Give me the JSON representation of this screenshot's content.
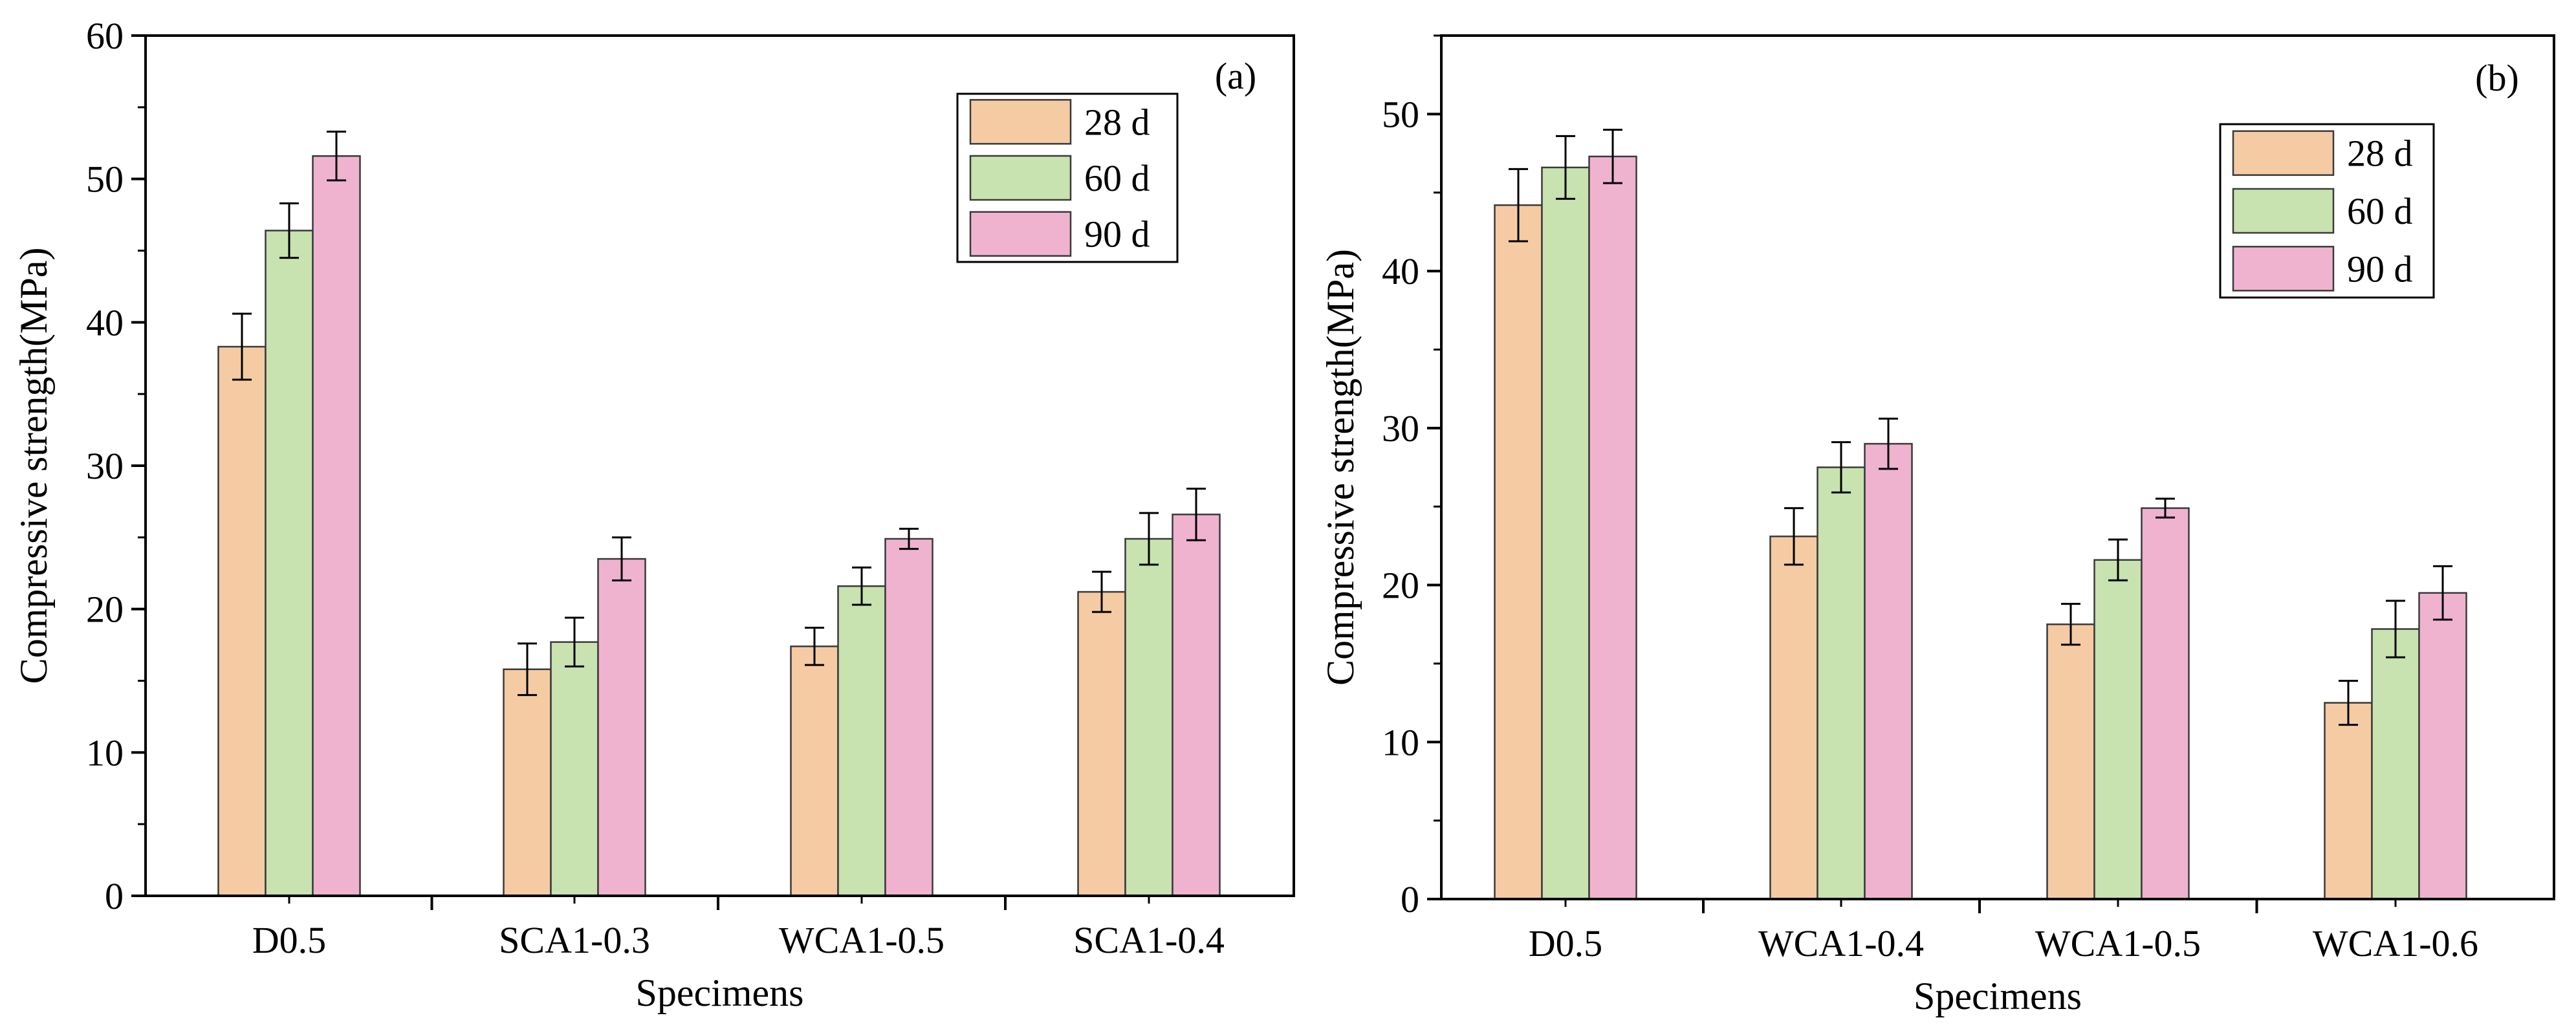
{
  "chart_data": [
    {
      "type": "bar",
      "panel_label": "(a)",
      "xlabel": "Specimens",
      "ylabel": "Compressive strength(MPa)",
      "ylim": [
        0,
        60
      ],
      "yticks": [
        0,
        10,
        20,
        30,
        40,
        50,
        60
      ],
      "categories": [
        "D0.5",
        "SCA1-0.3",
        "WCA1-0.5",
        "SCA1-0.4"
      ],
      "legend_position": "top-right",
      "series": [
        {
          "name": "28 d",
          "color": "#f5cba3",
          "values": [
            38.3,
            15.8,
            17.4,
            21.2
          ],
          "errors": [
            2.3,
            1.8,
            1.3,
            1.4
          ]
        },
        {
          "name": "60 d",
          "color": "#c8e2b0",
          "values": [
            46.4,
            17.7,
            21.6,
            24.9
          ],
          "errors": [
            1.9,
            1.7,
            1.3,
            1.8
          ]
        },
        {
          "name": "90 d",
          "color": "#f0b3cf",
          "values": [
            51.6,
            23.5,
            24.9,
            26.6
          ],
          "errors": [
            1.7,
            1.5,
            0.7,
            1.8
          ]
        }
      ]
    },
    {
      "type": "bar",
      "panel_label": "(b)",
      "xlabel": "Specimens",
      "ylabel": "Compressive strength(MPa)",
      "ylim": [
        0,
        55
      ],
      "yticks": [
        0,
        10,
        20,
        30,
        40,
        50
      ],
      "categories": [
        "D0.5",
        "WCA1-0.4",
        "WCA1-0.5",
        "WCA1-0.6"
      ],
      "legend_position": "top-right",
      "series": [
        {
          "name": "28 d",
          "color": "#f5cba3",
          "values": [
            44.2,
            23.1,
            17.5,
            12.5
          ],
          "errors": [
            2.3,
            1.8,
            1.3,
            1.4
          ]
        },
        {
          "name": "60 d",
          "color": "#c8e2b0",
          "values": [
            46.6,
            27.5,
            21.6,
            17.2
          ],
          "errors": [
            2.0,
            1.6,
            1.3,
            1.8
          ]
        },
        {
          "name": "90 d",
          "color": "#f0b3cf",
          "values": [
            47.3,
            29.0,
            24.9,
            19.5
          ],
          "errors": [
            1.7,
            1.6,
            0.6,
            1.7
          ]
        }
      ]
    }
  ]
}
